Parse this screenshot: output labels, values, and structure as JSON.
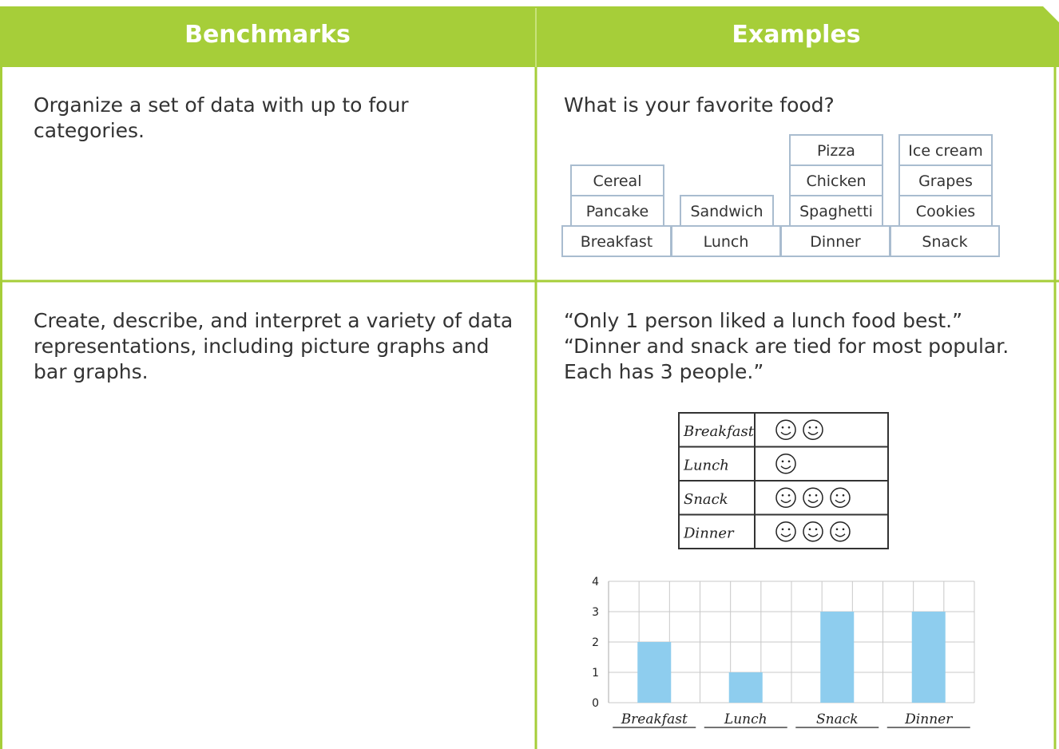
{
  "table": {
    "headers": [
      "Benchmarks",
      "Examples"
    ],
    "rows": [
      {
        "benchmark": "Organize a set of data with up to four categories.",
        "example_text": [
          "What is your favorite food?"
        ],
        "food_groups": [
          {
            "category": "Breakfast",
            "items": [
              "Pancake",
              "Cereal"
            ]
          },
          {
            "category": "Lunch",
            "items": [
              "Sandwich"
            ]
          },
          {
            "category": "Dinner",
            "items": [
              "Spaghetti",
              "Chicken",
              "Pizza"
            ]
          },
          {
            "category": "Snack",
            "items": [
              "Cookies",
              "Grapes",
              "Ice cream"
            ]
          }
        ]
      },
      {
        "benchmark": "Create, describe, and interpret a variety of data representations, including picture graphs and bar graphs.",
        "example_text": [
          "“Only 1 person liked a lunch food best.”",
          "“Dinner and snack are tied for most popular. Each has 3 people.”"
        ]
      }
    ]
  },
  "picture_graph": {
    "type": "pictograph",
    "categories": [
      "Breakfast",
      "Lunch",
      "Snack",
      "Dinner"
    ],
    "values": [
      2,
      1,
      3,
      3
    ]
  },
  "chart_data": {
    "type": "bar",
    "categories": [
      "Breakfast",
      "Lunch",
      "Snack",
      "Dinner"
    ],
    "values": [
      2,
      1,
      3,
      3
    ],
    "ylim": [
      0,
      4
    ],
    "yticks": [
      0,
      1,
      2,
      3,
      4
    ],
    "color": "#8ecdee",
    "grid": true
  }
}
